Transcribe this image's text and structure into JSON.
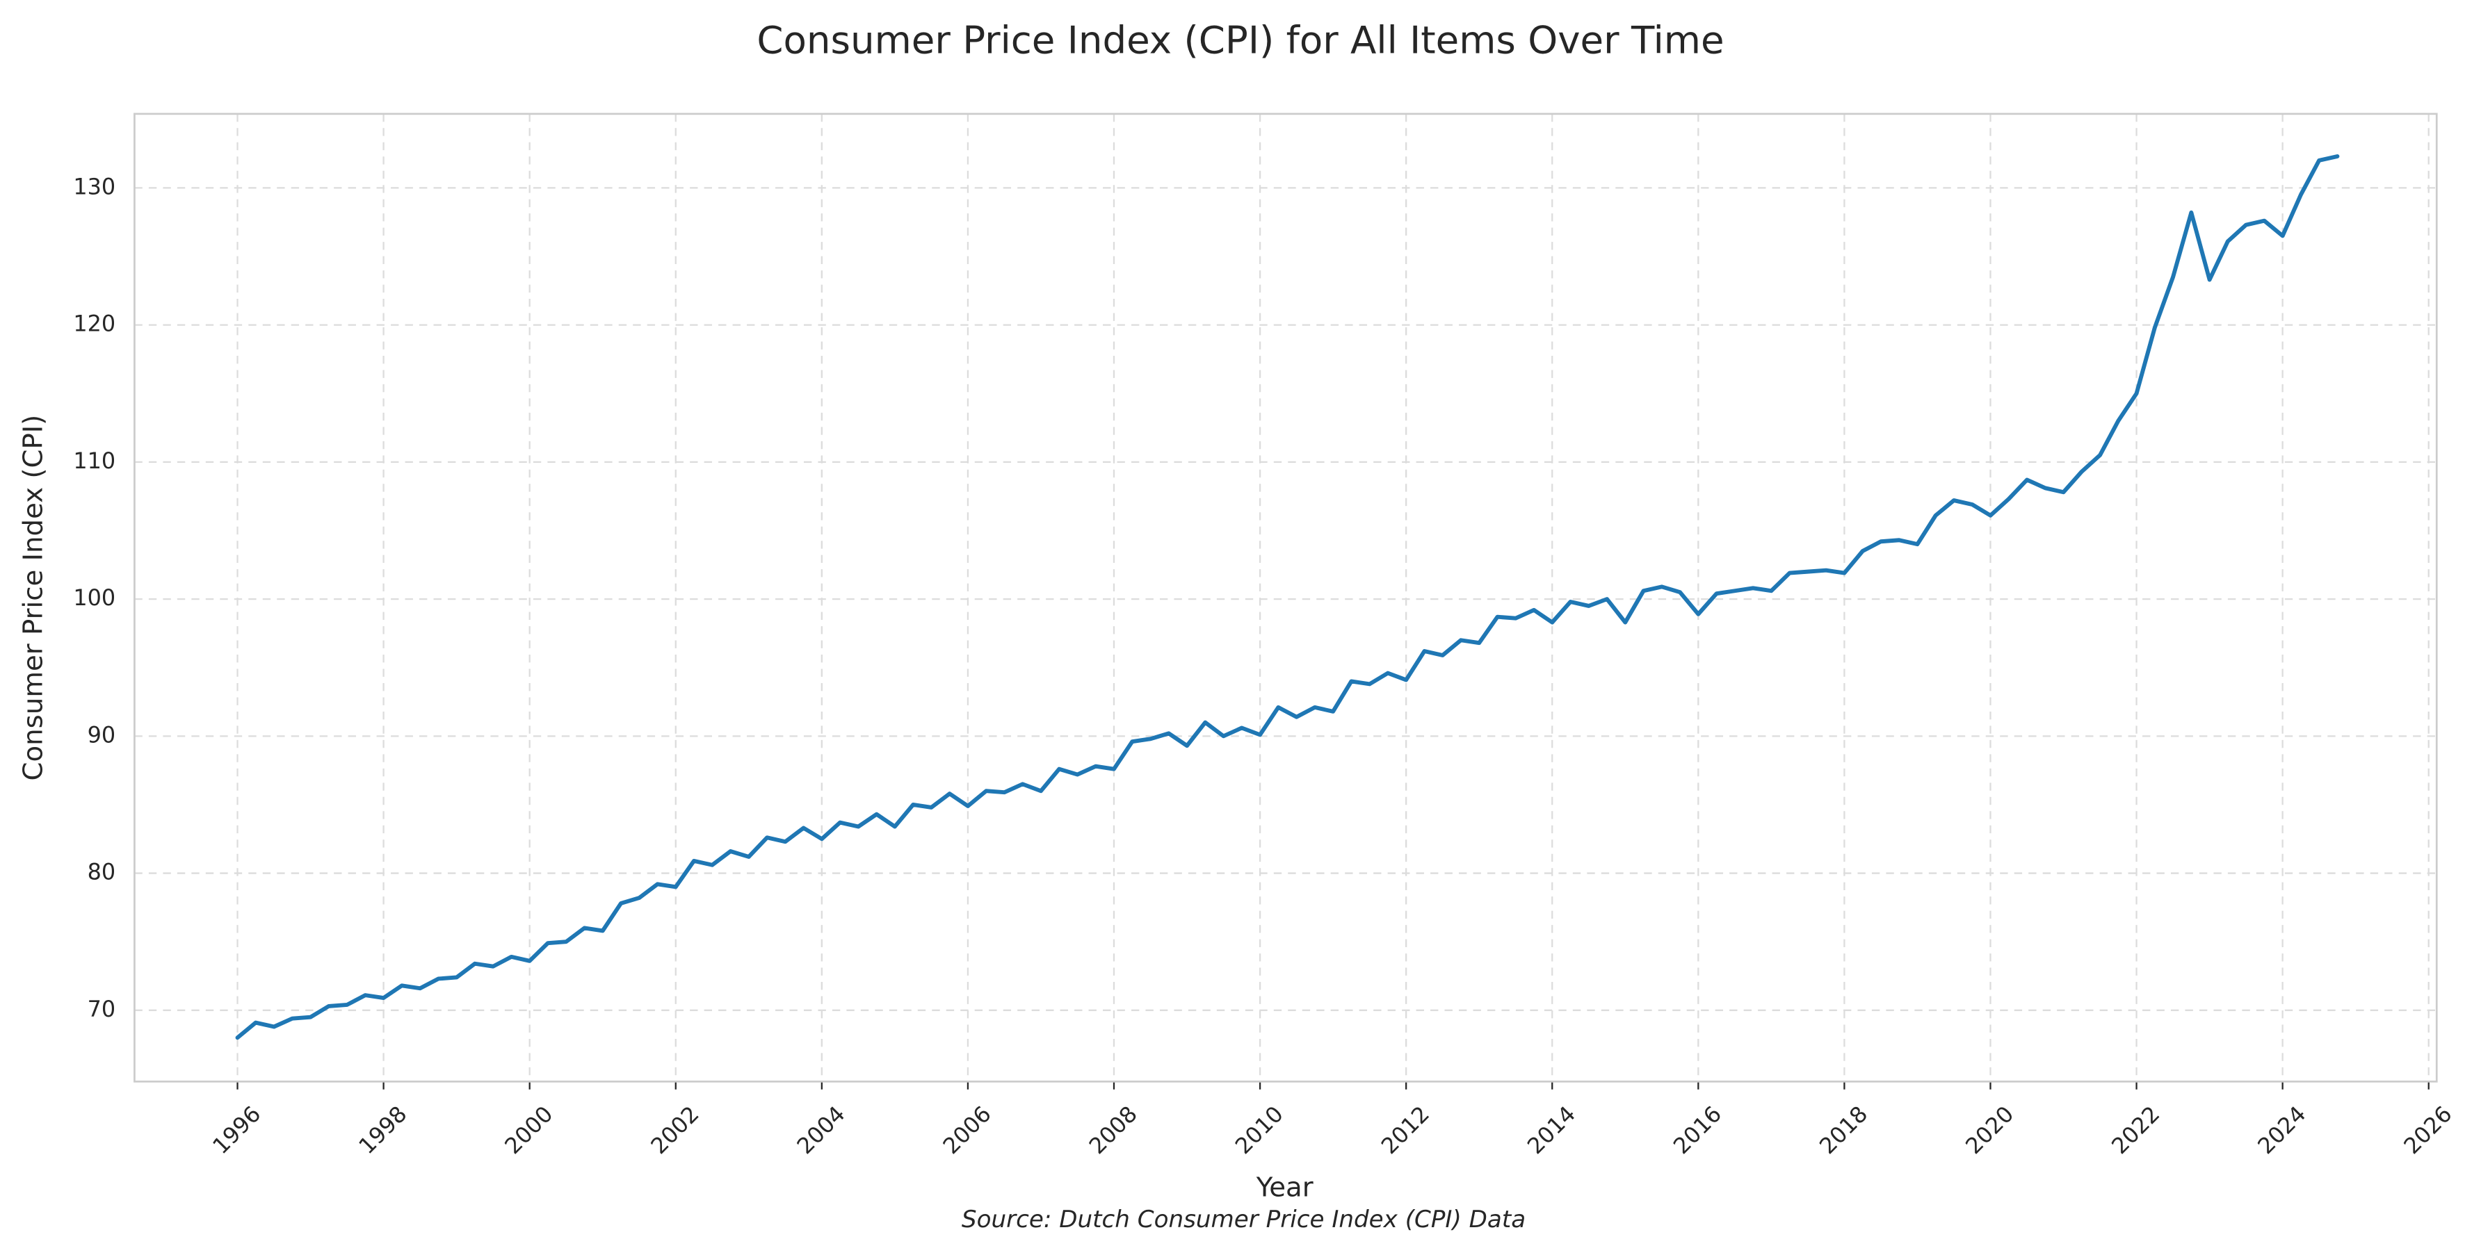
{
  "chart_data": {
    "type": "line",
    "title": "Consumer Price Index (CPI) for All Items Over Time",
    "x_label": "Year",
    "y_label": "Consumer Price Index (CPI)",
    "source": "Source: Dutch Consumer Price Index (CPI) Data",
    "color": "#1f77b4",
    "grid": true,
    "xlim": [
      1994.59,
      2026.11
    ],
    "ylim": [
      64.8,
      135.4
    ],
    "xticks": [
      1996,
      1998,
      2000,
      2002,
      2004,
      2006,
      2008,
      2010,
      2012,
      2014,
      2016,
      2018,
      2020,
      2022,
      2024,
      2026
    ],
    "yticks": [
      70,
      80,
      90,
      100,
      110,
      120,
      130
    ],
    "x": [
      1996,
      1996.25,
      1996.5,
      1996.75,
      1997,
      1997.25,
      1997.5,
      1997.75,
      1998,
      1998.25,
      1998.5,
      1998.75,
      1999,
      1999.25,
      1999.5,
      1999.75,
      2000,
      2000.25,
      2000.5,
      2000.75,
      2001,
      2001.25,
      2001.5,
      2001.75,
      2002,
      2002.25,
      2002.5,
      2002.75,
      2003,
      2003.25,
      2003.5,
      2003.75,
      2004,
      2004.25,
      2004.5,
      2004.75,
      2005,
      2005.25,
      2005.5,
      2005.75,
      2006,
      2006.25,
      2006.5,
      2006.75,
      2007,
      2007.25,
      2007.5,
      2007.75,
      2008,
      2008.25,
      2008.5,
      2008.75,
      2009,
      2009.25,
      2009.5,
      2009.75,
      2010,
      2010.25,
      2010.5,
      2010.75,
      2011,
      2011.25,
      2011.5,
      2011.75,
      2012,
      2012.25,
      2012.5,
      2012.75,
      2013,
      2013.25,
      2013.5,
      2013.75,
      2014,
      2014.25,
      2014.5,
      2014.75,
      2015,
      2015.25,
      2015.5,
      2015.75,
      2016,
      2016.25,
      2016.5,
      2016.75,
      2017,
      2017.25,
      2017.5,
      2017.75,
      2018,
      2018.25,
      2018.5,
      2018.75,
      2019,
      2019.25,
      2019.5,
      2019.75,
      2020,
      2020.25,
      2020.5,
      2020.75,
      2021,
      2021.25,
      2021.5,
      2021.75,
      2022,
      2022.25,
      2022.5,
      2022.75,
      2023,
      2023.25,
      2023.5,
      2023.75,
      2024,
      2024.25,
      2024.5,
      2024.75
    ],
    "values": [
      68.0,
      69.1,
      68.8,
      69.4,
      69.5,
      70.3,
      70.4,
      71.1,
      70.9,
      71.8,
      71.6,
      72.3,
      72.4,
      73.4,
      73.2,
      73.9,
      73.6,
      74.9,
      75.0,
      76.0,
      75.8,
      77.8,
      78.2,
      79.2,
      79.0,
      80.9,
      80.6,
      81.6,
      81.2,
      82.6,
      82.3,
      83.3,
      82.5,
      83.7,
      83.4,
      84.3,
      83.4,
      85.0,
      84.8,
      85.8,
      84.9,
      86.0,
      85.9,
      86.5,
      86.0,
      87.6,
      87.2,
      87.8,
      87.6,
      89.6,
      89.8,
      90.2,
      89.3,
      91.0,
      90.0,
      90.6,
      90.1,
      92.1,
      91.4,
      92.1,
      91.8,
      94.0,
      93.8,
      94.6,
      94.1,
      96.2,
      95.9,
      97.0,
      96.8,
      98.7,
      98.6,
      99.2,
      98.3,
      99.8,
      99.5,
      100.0,
      98.3,
      100.6,
      100.9,
      100.5,
      98.9,
      100.4,
      100.6,
      100.8,
      100.6,
      101.9,
      102.0,
      102.1,
      101.9,
      103.5,
      104.2,
      104.3,
      104.0,
      106.1,
      107.2,
      106.9,
      106.1,
      107.3,
      108.7,
      108.1,
      107.8,
      109.3,
      110.5,
      113.0,
      115.0,
      119.8,
      123.5,
      128.2,
      123.3,
      126.1,
      127.3,
      127.6,
      126.5,
      129.5,
      132.0,
      132.3
    ]
  }
}
